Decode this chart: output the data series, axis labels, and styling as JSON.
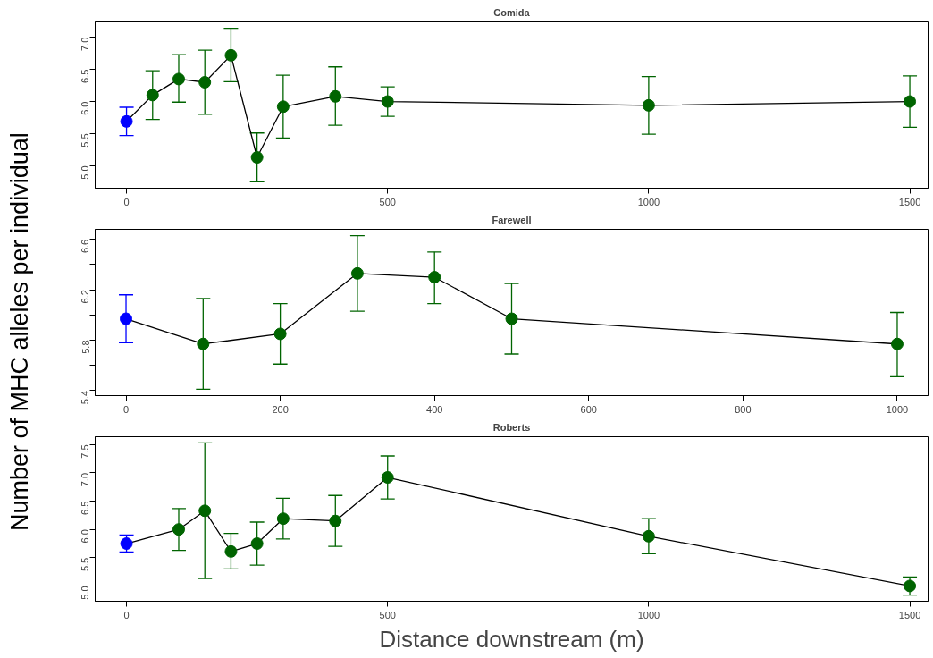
{
  "chart_data": [
    {
      "type": "line",
      "title": "Comida",
      "marker": "circle",
      "grid": false,
      "x": [
        0,
        50,
        100,
        150,
        200,
        250,
        300,
        400,
        500,
        1000,
        1500
      ],
      "xlim": [
        -60,
        1535
      ],
      "xticks": [
        0,
        500,
        1000,
        1500
      ],
      "ylim": [
        4.65,
        7.24
      ],
      "yticks": [
        {
          "value": 5,
          "label": "5.0"
        },
        5.5,
        {
          "value": 6,
          "label": "6.0"
        },
        6.5,
        {
          "value": 7,
          "label": "7.0"
        }
      ],
      "series": [
        {
          "color": "#000000",
          "colors": [
            "#0000ff",
            "#006400",
            "#006400",
            "#006400",
            "#006400",
            "#006400",
            "#006400",
            "#006400",
            "#006400",
            "#006400",
            "#006400"
          ],
          "values": [
            5.69,
            6.1,
            6.35,
            6.3,
            6.72,
            5.13,
            5.92,
            6.08,
            6.0,
            5.94,
            6.0
          ],
          "errors": [
            [
              5.47,
              5.91
            ],
            [
              5.72,
              6.48
            ],
            [
              5.99,
              6.73
            ],
            [
              5.8,
              6.8
            ],
            [
              6.31,
              7.14
            ],
            [
              4.75,
              5.51
            ],
            [
              5.43,
              6.41
            ],
            [
              5.63,
              6.54
            ],
            [
              5.77,
              6.23
            ],
            [
              5.49,
              6.39
            ],
            [
              5.6,
              6.4
            ]
          ]
        }
      ]
    },
    {
      "type": "line",
      "title": "Farewell",
      "ylabel": "Number of MHC alleles per individual",
      "marker": "circle",
      "grid": false,
      "x": [
        0,
        100,
        200,
        300,
        400,
        500,
        1000
      ],
      "xlim": [
        -40,
        1040
      ],
      "xticks": [
        0,
        200,
        400,
        600,
        800,
        1000
      ],
      "ylim": [
        5.36,
        6.68
      ],
      "yticks": [
        5.4,
        {
          "value": 5.6,
          "label": null
        },
        5.8,
        {
          "value": 6.0,
          "label": null
        },
        6.2,
        {
          "value": 6.4,
          "label": null
        },
        6.6
      ],
      "series": [
        {
          "color": "#000000",
          "colors": [
            "#0000ff",
            "#006400",
            "#006400",
            "#006400",
            "#006400",
            "#006400",
            "#006400"
          ],
          "values": [
            5.97,
            5.77,
            5.85,
            6.33,
            6.3,
            5.97,
            5.77
          ],
          "errors": [
            [
              5.78,
              6.16
            ],
            [
              5.41,
              6.13
            ],
            [
              5.61,
              6.09
            ],
            [
              6.03,
              6.63
            ],
            [
              6.09,
              6.5
            ],
            [
              5.69,
              6.25
            ],
            [
              5.51,
              6.02
            ]
          ]
        }
      ]
    },
    {
      "type": "line",
      "title": "Roberts",
      "xlabel": "Distance downstream (m)",
      "marker": "circle",
      "grid": false,
      "x": [
        0,
        100,
        150,
        200,
        250,
        300,
        400,
        500,
        1000,
        1500
      ],
      "xlim": [
        -60,
        1535
      ],
      "xticks": [
        0,
        500,
        1000,
        1500
      ],
      "ylim": [
        4.73,
        7.64
      ],
      "yticks": [
        {
          "value": 5,
          "label": "5.0"
        },
        5.5,
        {
          "value": 6,
          "label": "6.0"
        },
        6.5,
        {
          "value": 7,
          "label": "7.0"
        },
        7.5
      ],
      "series": [
        {
          "color": "#000000",
          "colors": [
            "#0000ff",
            "#006400",
            "#006400",
            "#006400",
            "#006400",
            "#006400",
            "#006400",
            "#006400",
            "#006400",
            "#006400"
          ],
          "values": [
            5.75,
            6.0,
            6.33,
            5.61,
            5.75,
            6.19,
            6.15,
            6.92,
            5.88,
            5.0
          ],
          "errors": [
            [
              5.6,
              5.9
            ],
            [
              5.63,
              6.37
            ],
            [
              5.13,
              7.53
            ],
            [
              5.3,
              5.93
            ],
            [
              5.37,
              6.13
            ],
            [
              5.83,
              6.55
            ],
            [
              5.7,
              6.6
            ],
            [
              6.54,
              7.3
            ],
            [
              5.57,
              6.19
            ],
            [
              4.84,
              5.16
            ]
          ]
        }
      ]
    }
  ]
}
